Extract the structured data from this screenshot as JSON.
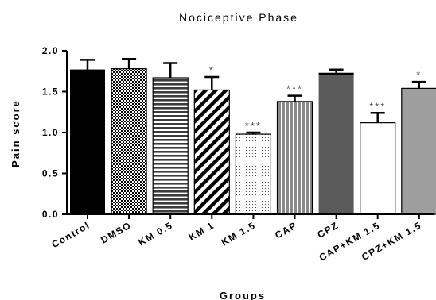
{
  "chart_data": {
    "type": "bar",
    "title": "Nociceptive Phase",
    "xlabel": "Groups",
    "ylabel": "Pain score",
    "ylim": [
      0,
      2.0
    ],
    "yticks": [
      "0.0",
      "0.5",
      "1.0",
      "1.5",
      "2.0"
    ],
    "categories": [
      "Control",
      "DMSO",
      "KM 0.5",
      "KM 1",
      "KM 1.5",
      "CAP",
      "CPZ",
      "CAP+KM 1.5",
      "CPZ+KM 1.5"
    ],
    "values": [
      1.77,
      1.78,
      1.67,
      1.52,
      0.98,
      1.38,
      1.73,
      1.12,
      1.54
    ],
    "errors": [
      0.12,
      0.12,
      0.18,
      0.16,
      0.02,
      0.07,
      0.04,
      0.12,
      0.08
    ],
    "significance": [
      "",
      "",
      "",
      "*",
      "***",
      "***",
      "",
      "***",
      "*"
    ],
    "fills": [
      "solid-black",
      "checker",
      "horizontal-lines",
      "diagonal-lines",
      "dots",
      "vertical-lines",
      "solid-darkgray",
      "white",
      "solid-lightgray"
    ],
    "colors": {
      "black": "#000000",
      "darkgray": "#5a5a5a",
      "lightgray": "#9e9e9e",
      "white": "#ffffff"
    }
  }
}
